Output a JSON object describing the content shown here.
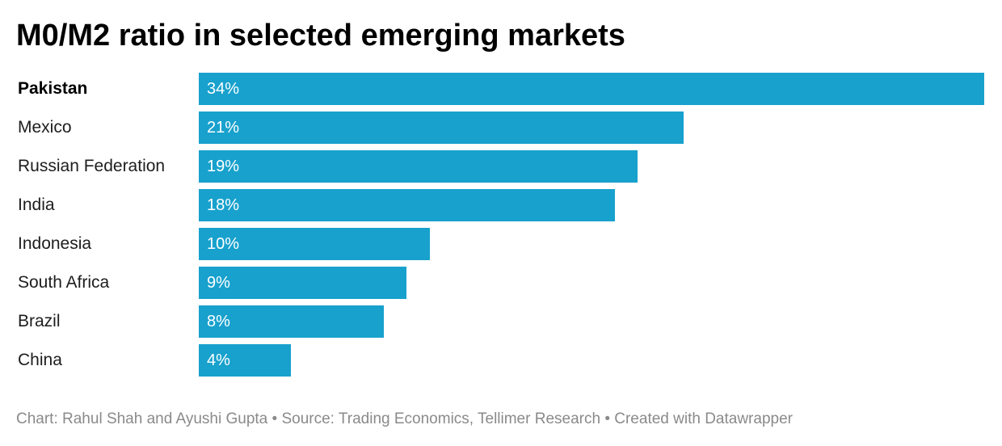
{
  "title": "M0/M2 ratio in selected emerging markets",
  "footer": "Chart: Rahul Shah and Ayushi Gupta • Source: Trading Economics, Tellimer Research • Created with Datawrapper",
  "colors": {
    "bar": "#18a1cd",
    "bar_label": "#ffffff",
    "footer": "#8a8a8a"
  },
  "chart_data": {
    "type": "bar",
    "orientation": "horizontal",
    "title": "M0/M2 ratio in selected emerging markets",
    "unit": "%",
    "categories": [
      "Pakistan",
      "Mexico",
      "Russian Federation",
      "India",
      "Indonesia",
      "South Africa",
      "Brazil",
      "China"
    ],
    "values": [
      34,
      21,
      19,
      18,
      10,
      9,
      8,
      4
    ],
    "value_labels": [
      "34%",
      "21%",
      "19%",
      "18%",
      "10%",
      "9%",
      "8%",
      "4%"
    ],
    "highlighted": "Pakistan",
    "xlim": [
      0,
      34
    ],
    "grid": false,
    "legend": "none"
  }
}
